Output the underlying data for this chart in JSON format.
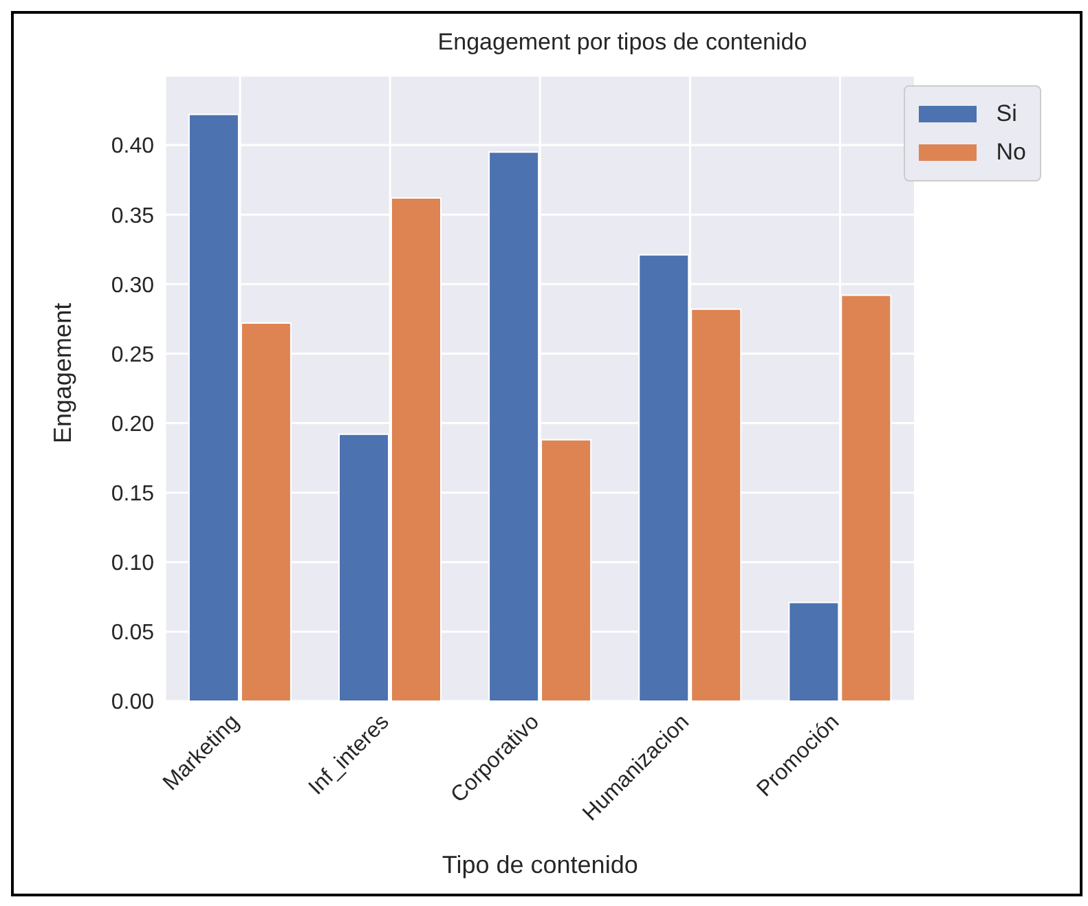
{
  "chart_data": {
    "type": "bar",
    "title": "Engagement por tipos de contenido",
    "xlabel": "Tipo de contenido",
    "ylabel": "Engagement",
    "categories": [
      "Marketing",
      "Inf_interes",
      "Corporativo",
      "Humanizacion",
      "Promoción"
    ],
    "series": [
      {
        "name": "Si",
        "color": "#4c72b0",
        "values": [
          0.422,
          0.192,
          0.395,
          0.321,
          0.071
        ]
      },
      {
        "name": "No",
        "color": "#dd8452",
        "values": [
          0.272,
          0.362,
          0.188,
          0.282,
          0.292
        ]
      }
    ],
    "ylim": [
      0,
      0.45
    ],
    "yticks": [
      {
        "value": 0,
        "label": "0.00"
      },
      {
        "value": 0.05,
        "label": "0.05"
      },
      {
        "value": 0.1,
        "label": "0.10"
      },
      {
        "value": 0.15,
        "label": "0.15"
      },
      {
        "value": 0.2,
        "label": "0.20"
      },
      {
        "value": 0.25,
        "label": "0.25"
      },
      {
        "value": 0.3,
        "label": "0.30"
      },
      {
        "value": 0.35,
        "label": "0.35"
      },
      {
        "value": 0.4,
        "label": "0.40"
      }
    ],
    "grid": true,
    "legend": "top right"
  }
}
